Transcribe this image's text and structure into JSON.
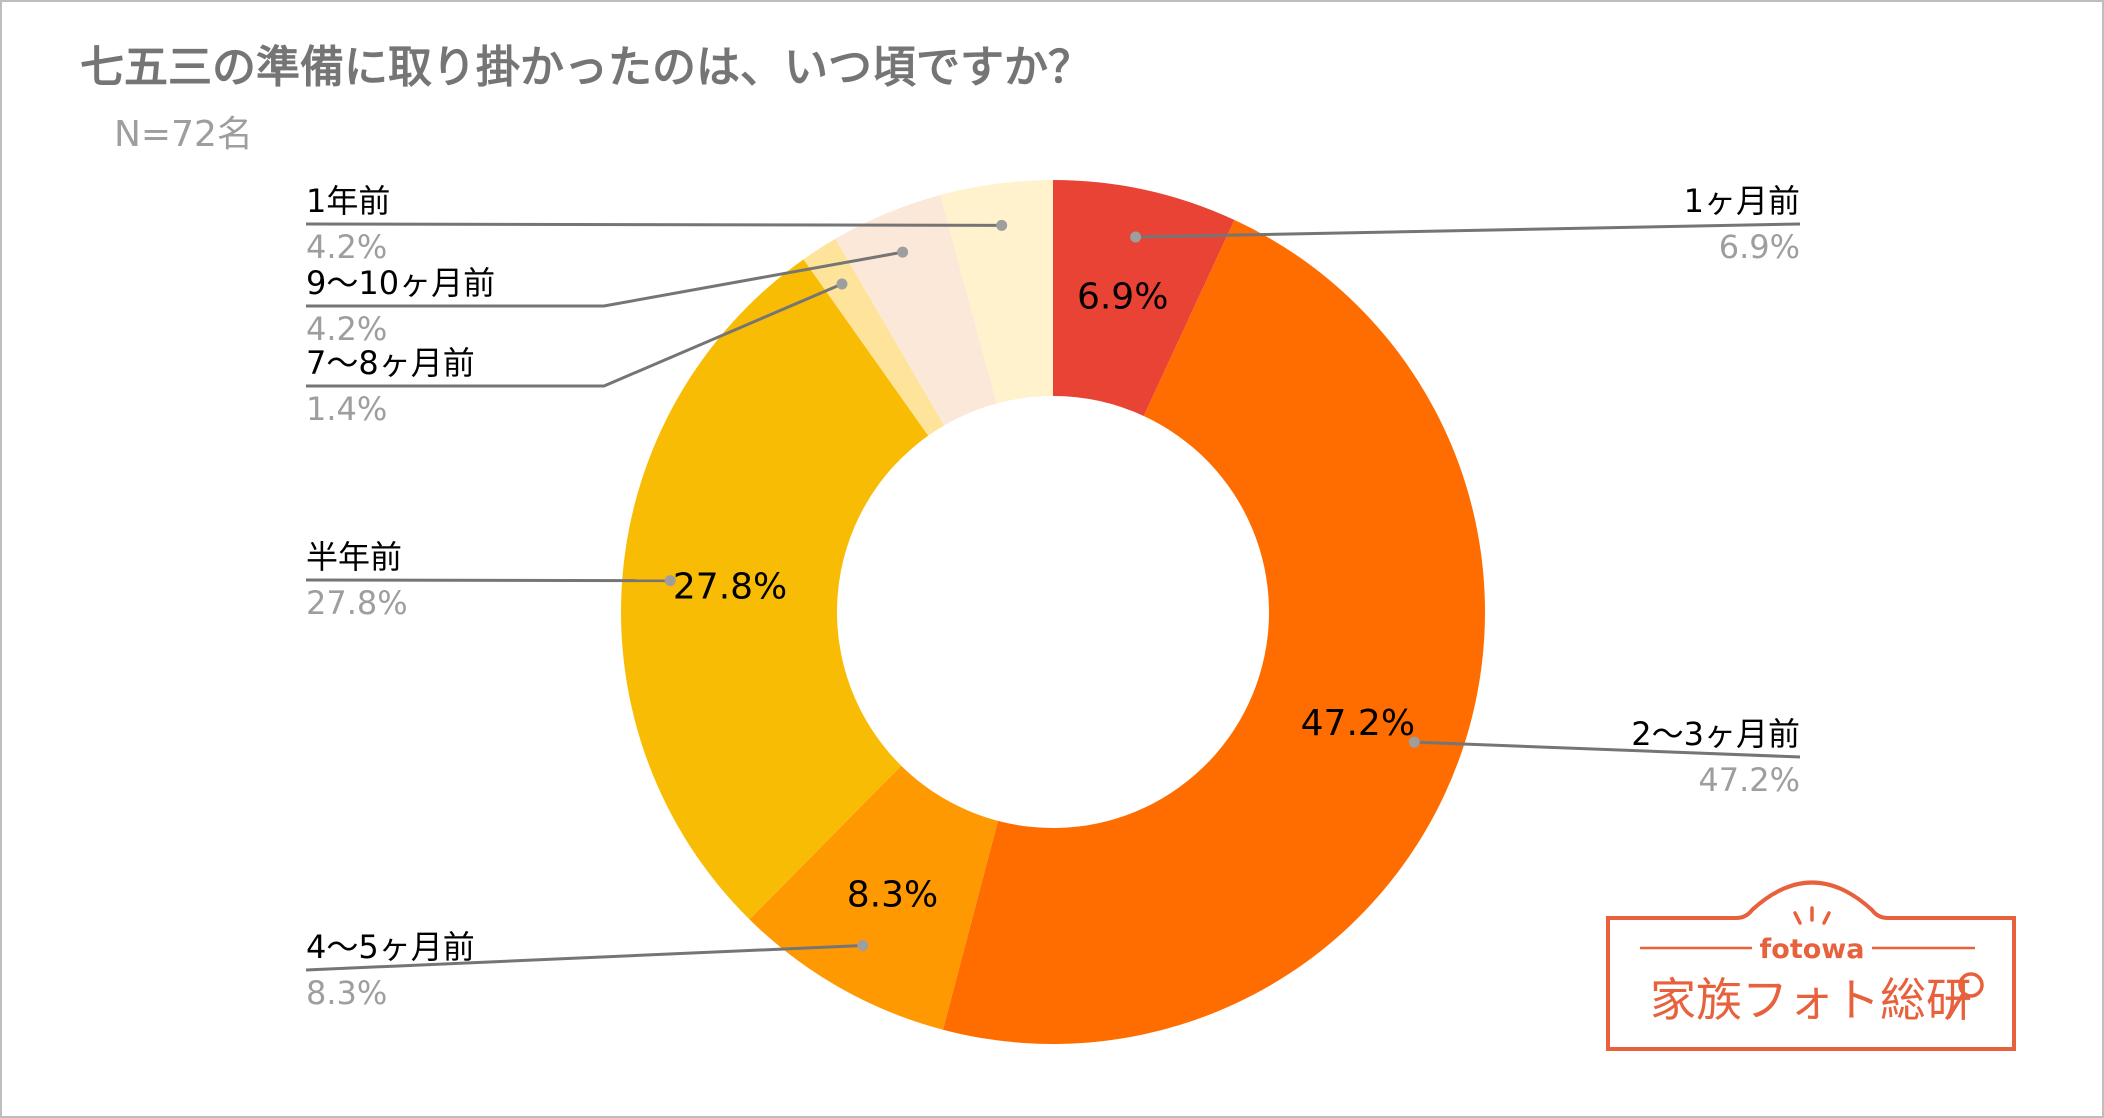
{
  "chart_data": {
    "type": "donut",
    "title": "七五三の準備に取り掛かったのは、いつ頃ですか？",
    "subtitle": "N=72名",
    "unit": "%",
    "categories": [
      "1ヶ月前",
      "2〜3ヶ月前",
      "4〜5ヶ月前",
      "半年前",
      "7〜8ヶ月前",
      "9〜10ヶ月前",
      "1年前"
    ],
    "values": [
      6.9,
      47.2,
      8.3,
      27.8,
      1.4,
      4.2,
      4.2
    ],
    "value_labels": [
      "6.9%",
      "47.2%",
      "8.3%",
      "27.8%",
      "1.4%",
      "4.2%",
      "4.2%"
    ],
    "colors": [
      "#e84335",
      "#ff6d01",
      "#ff9901",
      "#f9bc04",
      "#fee49b",
      "#fce8d9",
      "#fff2cc"
    ],
    "start_angle_deg": 0,
    "direction": "clockwise",
    "in_slice_labels": [
      true,
      true,
      true,
      true,
      false,
      false,
      false
    ]
  },
  "brand": {
    "top_text": "fotowa",
    "name": "家族フォト総研",
    "color": "#e8613d"
  }
}
